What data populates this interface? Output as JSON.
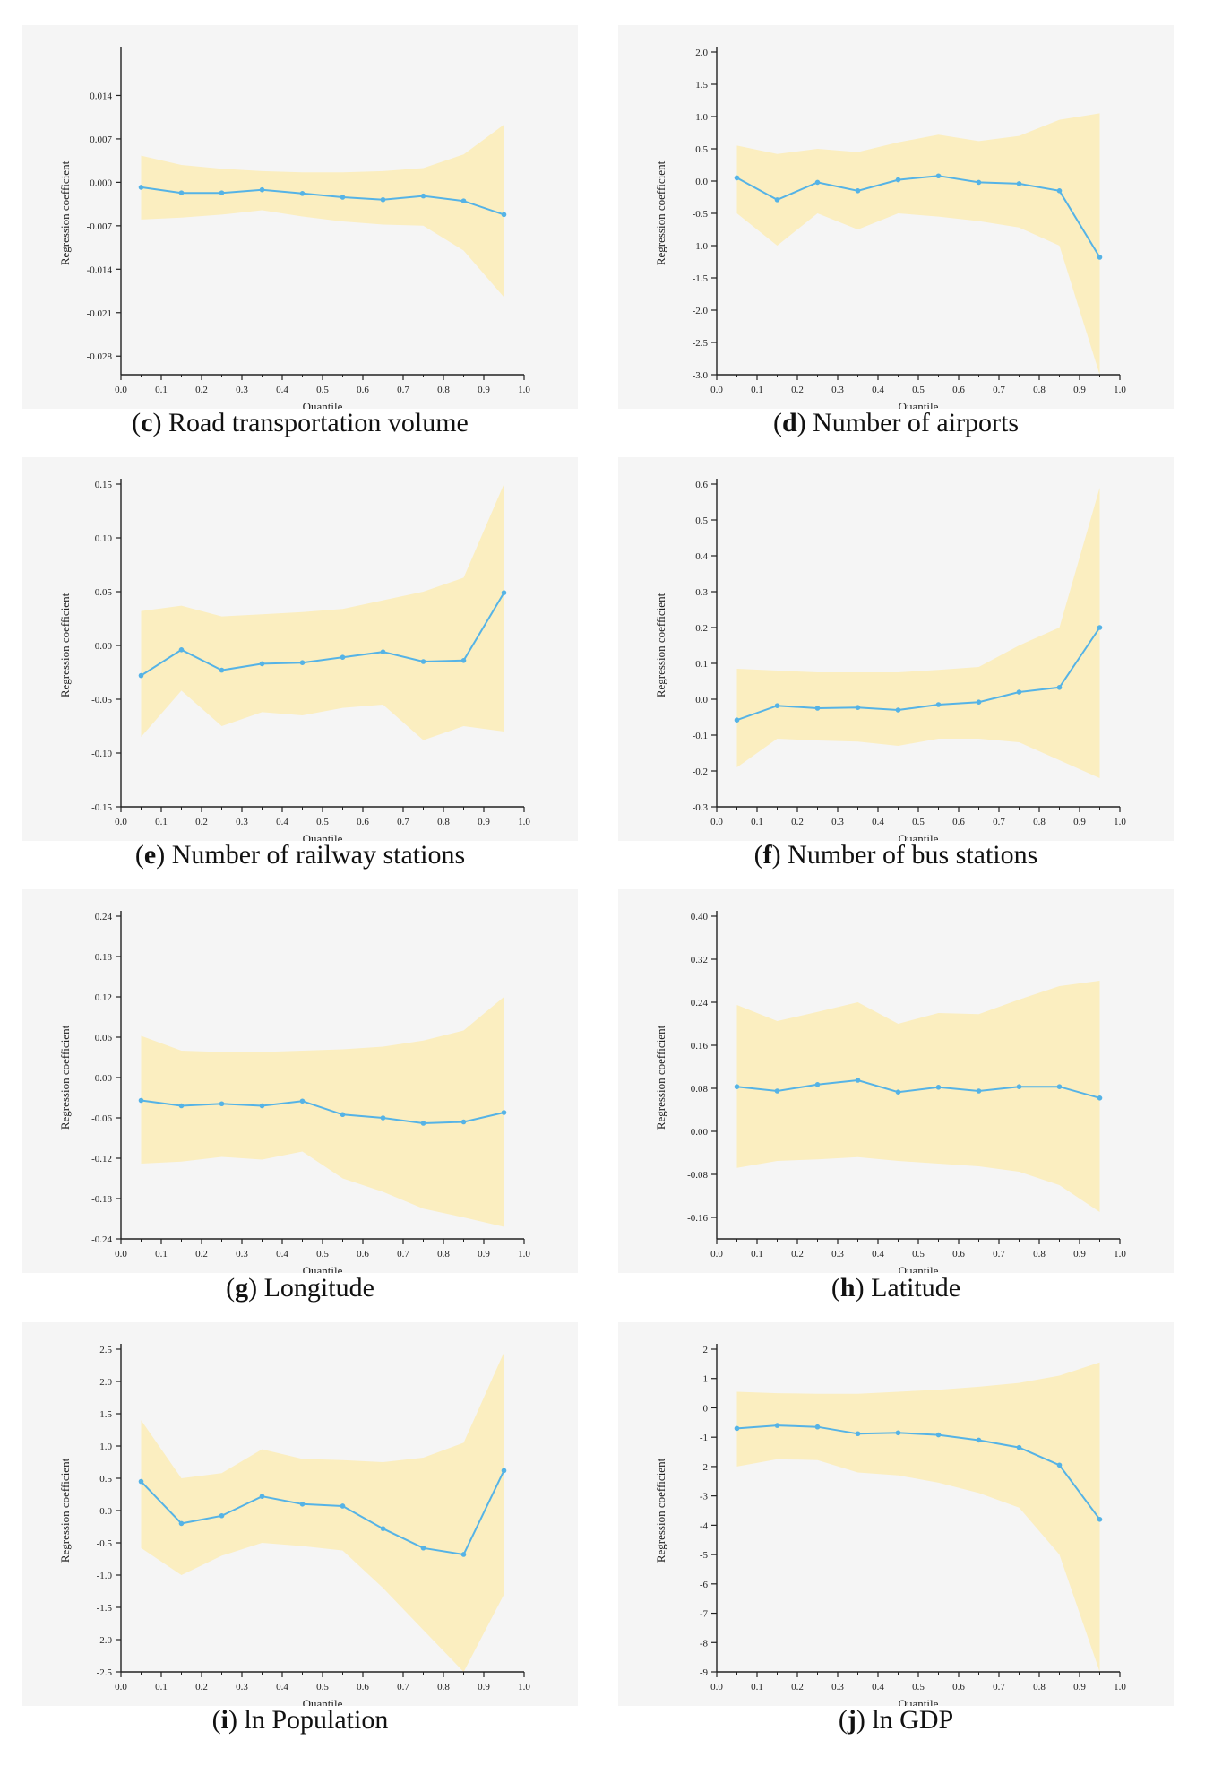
{
  "colors": {
    "band": "#fbeec0",
    "line": "#55b3e6",
    "axis": "#222222",
    "plot_bg": "#f5f5f5"
  },
  "chart_data": [
    {
      "id": "c",
      "type": "line",
      "caption_letter": "c",
      "caption_text": "Road transportation volume",
      "xlabel": "Quantile",
      "ylabel": "Regression coefficient",
      "xlim": [
        0.0,
        1.0
      ],
      "x_ticks": [
        "0.0",
        "0.1",
        "0.2",
        "0.3",
        "0.4",
        "0.5",
        "0.6",
        "0.7",
        "0.8",
        "0.9",
        "1.0"
      ],
      "ylim": [
        -0.031,
        0.021
      ],
      "y_tick_values": [
        0.014,
        0.007,
        0.0,
        -0.007,
        -0.014,
        -0.021,
        -0.028
      ],
      "y_tick_labels": [
        "0.014",
        "0.007",
        "0.000",
        "-0.007",
        "-0.014",
        "-0.021",
        "-0.028"
      ],
      "x": [
        0.05,
        0.15,
        0.25,
        0.35,
        0.45,
        0.55,
        0.65,
        0.75,
        0.85,
        0.95
      ],
      "values": [
        -0.0008,
        -0.0017,
        -0.0017,
        -0.0012,
        -0.0018,
        -0.0024,
        -0.0028,
        -0.0022,
        -0.003,
        -0.0052
      ],
      "band_upper": [
        0.0043,
        0.0028,
        0.0022,
        0.0018,
        0.0016,
        0.0016,
        0.0018,
        0.0023,
        0.0045,
        0.0093
      ],
      "band_lower": [
        -0.006,
        -0.0057,
        -0.0052,
        -0.0045,
        -0.0055,
        -0.0063,
        -0.0068,
        -0.007,
        -0.011,
        -0.0185
      ]
    },
    {
      "id": "d",
      "type": "line",
      "caption_letter": "d",
      "caption_text": "Number of airports",
      "xlabel": "Quantile",
      "ylabel": "Regression coefficient",
      "xlim": [
        0.0,
        1.0
      ],
      "x_ticks": [
        "0.0",
        "0.1",
        "0.2",
        "0.3",
        "0.4",
        "0.5",
        "0.6",
        "0.7",
        "0.8",
        "0.9",
        "1.0"
      ],
      "ylim": [
        -3.0,
        2.0
      ],
      "y_tick_values": [
        2.0,
        1.5,
        1.0,
        0.5,
        0.0,
        -0.5,
        -1.0,
        -1.5,
        -2.0,
        -2.5,
        -3.0
      ],
      "y_tick_labels": [
        "2.0",
        "1.5",
        "1.0",
        "0.5",
        "0.0",
        "-0.5",
        "-1.0",
        "-1.5",
        "-2.0",
        "-2.5",
        "-3.0"
      ],
      "x": [
        0.05,
        0.15,
        0.25,
        0.35,
        0.45,
        0.55,
        0.65,
        0.75,
        0.85,
        0.95
      ],
      "values": [
        0.05,
        -0.29,
        -0.02,
        -0.15,
        0.02,
        0.08,
        -0.02,
        -0.04,
        -0.15,
        -1.18
      ],
      "band_upper": [
        0.55,
        0.42,
        0.5,
        0.45,
        0.6,
        0.72,
        0.62,
        0.7,
        0.95,
        1.05
      ],
      "band_lower": [
        -0.5,
        -1.0,
        -0.5,
        -0.75,
        -0.5,
        -0.55,
        -0.62,
        -0.72,
        -1.0,
        -3.0
      ]
    },
    {
      "id": "e",
      "type": "line",
      "caption_letter": "e",
      "caption_text": "Number of railway stations",
      "xlabel": "Quantile",
      "ylabel": "Regression coefficient",
      "xlim": [
        0.0,
        1.0
      ],
      "x_ticks": [
        "0.0",
        "0.1",
        "0.2",
        "0.3",
        "0.4",
        "0.5",
        "0.6",
        "0.7",
        "0.8",
        "0.9",
        "1.0"
      ],
      "ylim": [
        -0.15,
        0.15
      ],
      "y_tick_values": [
        0.15,
        0.1,
        0.05,
        0.0,
        -0.05,
        -0.1,
        -0.15
      ],
      "y_tick_labels": [
        "0.15",
        "0.10",
        "0.05",
        "0.00",
        "-0.05",
        "-0.10",
        "-0.15"
      ],
      "x": [
        0.05,
        0.15,
        0.25,
        0.35,
        0.45,
        0.55,
        0.65,
        0.75,
        0.85,
        0.95
      ],
      "values": [
        -0.028,
        -0.004,
        -0.023,
        -0.017,
        -0.016,
        -0.011,
        -0.006,
        -0.015,
        -0.014,
        0.049
      ],
      "band_upper": [
        0.032,
        0.037,
        0.027,
        0.029,
        0.031,
        0.034,
        0.042,
        0.05,
        0.063,
        0.15
      ],
      "band_lower": [
        -0.085,
        -0.042,
        -0.075,
        -0.062,
        -0.065,
        -0.058,
        -0.055,
        -0.088,
        -0.075,
        -0.08
      ]
    },
    {
      "id": "f",
      "type": "line",
      "caption_letter": "f",
      "caption_text": "Number of bus stations",
      "xlabel": "Quantile",
      "ylabel": "Regression coefficient",
      "xlim": [
        0.0,
        1.0
      ],
      "x_ticks": [
        "0.0",
        "0.1",
        "0.2",
        "0.3",
        "0.4",
        "0.5",
        "0.6",
        "0.7",
        "0.8",
        "0.9",
        "1.0"
      ],
      "ylim": [
        -0.3,
        0.6
      ],
      "y_tick_values": [
        0.6,
        0.5,
        0.4,
        0.3,
        0.2,
        0.1,
        0.0,
        -0.1,
        -0.2,
        -0.3
      ],
      "y_tick_labels": [
        "0.6",
        "0.5",
        "0.4",
        "0.3",
        "0.2",
        "0.1",
        "0.0",
        "-0.1",
        "-0.2",
        "-0.3"
      ],
      "x": [
        0.05,
        0.15,
        0.25,
        0.35,
        0.45,
        0.55,
        0.65,
        0.75,
        0.85,
        0.95
      ],
      "values": [
        -0.058,
        -0.018,
        -0.025,
        -0.023,
        -0.03,
        -0.015,
        -0.008,
        0.02,
        0.033,
        0.2
      ],
      "band_upper": [
        0.085,
        0.08,
        0.075,
        0.075,
        0.075,
        0.082,
        0.09,
        0.15,
        0.2,
        0.59
      ],
      "band_lower": [
        -0.19,
        -0.11,
        -0.115,
        -0.118,
        -0.13,
        -0.11,
        -0.11,
        -0.12,
        -0.17,
        -0.22
      ]
    },
    {
      "id": "g",
      "type": "line",
      "caption_letter": "g",
      "caption_text": "Longitude",
      "xlabel": "Quantile",
      "ylabel": "Regression coefficient",
      "xlim": [
        0.0,
        1.0
      ],
      "x_ticks": [
        "0.0",
        "0.1",
        "0.2",
        "0.3",
        "0.4",
        "0.5",
        "0.6",
        "0.7",
        "0.8",
        "0.9",
        "1.0"
      ],
      "ylim": [
        -0.24,
        0.24
      ],
      "y_tick_values": [
        0.24,
        0.18,
        0.12,
        0.06,
        0.0,
        -0.06,
        -0.12,
        -0.18,
        -0.24
      ],
      "y_tick_labels": [
        "0.24",
        "0.18",
        "0.12",
        "0.06",
        "0.00",
        "-0.06",
        "-0.12",
        "-0.18",
        "-0.24"
      ],
      "x": [
        0.05,
        0.15,
        0.25,
        0.35,
        0.45,
        0.55,
        0.65,
        0.75,
        0.85,
        0.95
      ],
      "values": [
        -0.034,
        -0.042,
        -0.039,
        -0.042,
        -0.035,
        -0.055,
        -0.06,
        -0.068,
        -0.066,
        -0.052
      ],
      "band_upper": [
        0.062,
        0.04,
        0.038,
        0.038,
        0.04,
        0.042,
        0.046,
        0.055,
        0.07,
        0.12
      ],
      "band_lower": [
        -0.128,
        -0.125,
        -0.118,
        -0.122,
        -0.11,
        -0.15,
        -0.17,
        -0.195,
        -0.208,
        -0.222
      ]
    },
    {
      "id": "h",
      "type": "line",
      "caption_letter": "h",
      "caption_text": "Latitude",
      "xlabel": "Quantile",
      "ylabel": "Regression coefficient",
      "xlim": [
        0.0,
        1.0
      ],
      "x_ticks": [
        "0.0",
        "0.1",
        "0.2",
        "0.3",
        "0.4",
        "0.5",
        "0.6",
        "0.7",
        "0.8",
        "0.9",
        "1.0"
      ],
      "ylim": [
        -0.2,
        0.4
      ],
      "y_tick_values": [
        0.4,
        0.32,
        0.24,
        0.16,
        0.08,
        0.0,
        -0.08,
        -0.16
      ],
      "y_tick_labels": [
        "0.40",
        "0.32",
        "0.24",
        "0.16",
        "0.08",
        "0.00",
        "-0.08",
        "-0.16"
      ],
      "x": [
        0.05,
        0.15,
        0.25,
        0.35,
        0.45,
        0.55,
        0.65,
        0.75,
        0.85,
        0.95
      ],
      "values": [
        0.083,
        0.075,
        0.087,
        0.095,
        0.073,
        0.082,
        0.075,
        0.083,
        0.083,
        0.062
      ],
      "band_upper": [
        0.235,
        0.205,
        0.222,
        0.24,
        0.2,
        0.22,
        0.218,
        0.245,
        0.27,
        0.28
      ],
      "band_lower": [
        -0.068,
        -0.055,
        -0.052,
        -0.048,
        -0.055,
        -0.06,
        -0.065,
        -0.075,
        -0.1,
        -0.15
      ]
    },
    {
      "id": "i",
      "type": "line",
      "caption_letter": "i",
      "caption_text": "ln Population",
      "xlabel": "Quantile",
      "ylabel": "Regression coefficient",
      "xlim": [
        0.0,
        1.0
      ],
      "x_ticks": [
        "0.0",
        "0.1",
        "0.2",
        "0.3",
        "0.4",
        "0.5",
        "0.6",
        "0.7",
        "0.8",
        "0.9",
        "1.0"
      ],
      "ylim": [
        -2.5,
        2.5
      ],
      "y_tick_values": [
        2.5,
        2.0,
        1.5,
        1.0,
        0.5,
        0.0,
        -0.5,
        -1.0,
        -1.5,
        -2.0,
        -2.5
      ],
      "y_tick_labels": [
        "2.5",
        "2.0",
        "1.5",
        "1.0",
        "0.5",
        "0.0",
        "-0.5",
        "-1.0",
        "-1.5",
        "-2.0",
        "-2.5"
      ],
      "x": [
        0.05,
        0.15,
        0.25,
        0.35,
        0.45,
        0.55,
        0.65,
        0.75,
        0.85,
        0.95
      ],
      "values": [
        0.45,
        -0.2,
        -0.08,
        0.22,
        0.1,
        0.07,
        -0.28,
        -0.58,
        -0.68,
        0.62
      ],
      "band_upper": [
        1.4,
        0.5,
        0.58,
        0.95,
        0.8,
        0.78,
        0.75,
        0.82,
        1.05,
        2.45
      ],
      "band_lower": [
        -0.58,
        -1.0,
        -0.7,
        -0.5,
        -0.55,
        -0.62,
        -1.2,
        -1.85,
        -2.5,
        -1.3
      ]
    },
    {
      "id": "j",
      "type": "line",
      "caption_letter": "j",
      "caption_text": "ln GDP",
      "xlabel": "Quantile",
      "ylabel": "Regression coefficient",
      "xlim": [
        0.0,
        1.0
      ],
      "x_ticks": [
        "0.0",
        "0.1",
        "0.2",
        "0.3",
        "0.4",
        "0.5",
        "0.6",
        "0.7",
        "0.8",
        "0.9",
        "1.0"
      ],
      "ylim": [
        -9,
        2
      ],
      "y_tick_values": [
        2,
        1,
        0,
        -1,
        -2,
        -3,
        -4,
        -5,
        -6,
        -7,
        -8,
        -9
      ],
      "y_tick_labels": [
        "2",
        "1",
        "0",
        "-1",
        "-2",
        "-3",
        "-4",
        "-5",
        "-6",
        "-7",
        "-8",
        "-9"
      ],
      "x": [
        0.05,
        0.15,
        0.25,
        0.35,
        0.45,
        0.55,
        0.65,
        0.75,
        0.85,
        0.95
      ],
      "values": [
        -0.7,
        -0.6,
        -0.65,
        -0.88,
        -0.85,
        -0.92,
        -1.1,
        -1.35,
        -1.95,
        -3.8
      ],
      "band_upper": [
        0.55,
        0.5,
        0.48,
        0.48,
        0.55,
        0.62,
        0.72,
        0.85,
        1.1,
        1.55
      ],
      "band_lower": [
        -2.0,
        -1.75,
        -1.78,
        -2.2,
        -2.3,
        -2.55,
        -2.9,
        -3.4,
        -5.0,
        -9.0
      ]
    }
  ]
}
